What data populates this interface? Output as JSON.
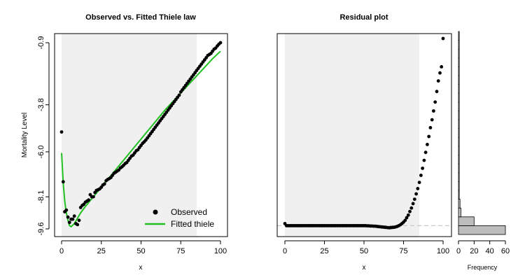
{
  "colors": {
    "points": "#000000",
    "fitted": "#22c022",
    "shade": "#f0f0f0",
    "hist_fill": "#bdbdbd",
    "zero_line": "#c8c8c8"
  },
  "chart_data": [
    {
      "type": "scatter",
      "title": "Observed vs. Fitted Thiele law",
      "xlabel": "x",
      "ylabel": "Mortality Level",
      "xlim": [
        0,
        100
      ],
      "ylim": [
        -9.6,
        -0.9
      ],
      "x_ticks": [
        0,
        25,
        50,
        75,
        100
      ],
      "x_tick_labels": [
        "0",
        "25",
        "50",
        "75",
        "100"
      ],
      "y_ticks": [
        -9.6,
        -8.1,
        -6.0,
        -3.8,
        -0.9
      ],
      "y_tick_labels": [
        "-9.6",
        "-8.1",
        "-6.0",
        "-3.8",
        "-0.9"
      ],
      "shaded_x_range": [
        0,
        85
      ],
      "legend": {
        "position": "bottom-right",
        "entries": [
          "Observed",
          "Fitted thiele"
        ]
      },
      "series": [
        {
          "name": "Observed",
          "style": "points",
          "x": [
            0,
            1,
            2,
            3,
            4,
            5,
            6,
            7,
            8,
            9,
            10,
            11,
            12,
            13,
            14,
            15,
            16,
            17,
            18,
            19,
            20,
            21,
            22,
            23,
            24,
            25,
            26,
            27,
            28,
            29,
            30,
            31,
            32,
            33,
            34,
            35,
            36,
            37,
            38,
            39,
            40,
            41,
            42,
            43,
            44,
            45,
            46,
            47,
            48,
            49,
            50,
            51,
            52,
            53,
            54,
            55,
            56,
            57,
            58,
            59,
            60,
            61,
            62,
            63,
            64,
            65,
            66,
            67,
            68,
            69,
            70,
            71,
            72,
            73,
            74,
            75,
            76,
            77,
            78,
            79,
            80,
            81,
            82,
            83,
            84,
            85,
            86,
            87,
            88,
            89,
            90,
            91,
            92,
            93,
            94,
            95,
            96,
            97,
            98,
            99,
            100
          ],
          "y": [
            -5.07,
            -7.4,
            -8.8,
            -8.72,
            -9.05,
            -9.3,
            -9.15,
            -9.15,
            -9.0,
            -9.35,
            -9.4,
            -9.2,
            -8.6,
            -8.5,
            -8.45,
            -8.35,
            -8.3,
            -8.25,
            -8.0,
            -8.1,
            -8.1,
            -7.9,
            -7.8,
            -7.77,
            -7.73,
            -7.65,
            -7.55,
            -7.5,
            -7.35,
            -7.29,
            -7.25,
            -7.2,
            -7.1,
            -7.0,
            -6.95,
            -6.9,
            -6.85,
            -6.75,
            -6.7,
            -6.63,
            -6.55,
            -6.5,
            -6.4,
            -6.3,
            -6.2,
            -6.15,
            -6.05,
            -5.95,
            -5.9,
            -5.8,
            -5.7,
            -5.6,
            -5.53,
            -5.45,
            -5.35,
            -5.25,
            -5.15,
            -5.05,
            -4.95,
            -4.85,
            -4.75,
            -4.65,
            -4.55,
            -4.45,
            -4.35,
            -4.25,
            -4.15,
            -4.05,
            -3.95,
            -3.85,
            -3.75,
            -3.65,
            -3.55,
            -3.45,
            -3.35,
            -3.2,
            -3.1,
            -3.0,
            -2.9,
            -2.8,
            -2.7,
            -2.6,
            -2.5,
            -2.4,
            -2.3,
            -2.2,
            -2.1,
            -2.0,
            -1.9,
            -1.8,
            -1.7,
            -1.6,
            -1.5,
            -1.45,
            -1.4,
            -1.3,
            -1.2,
            -1.15,
            -1.05,
            -0.97,
            -0.9
          ]
        },
        {
          "name": "Fitted thiele",
          "style": "line",
          "x": [
            0,
            1,
            2,
            3,
            4,
            5,
            6,
            8,
            10,
            12,
            15,
            20,
            25,
            30,
            35,
            40,
            45,
            50,
            55,
            60,
            65,
            70,
            75,
            80,
            85,
            90,
            95,
            100
          ],
          "y": [
            -6.05,
            -7.45,
            -8.3,
            -8.85,
            -9.2,
            -9.45,
            -9.5,
            -9.35,
            -9.1,
            -8.85,
            -8.55,
            -8.1,
            -7.65,
            -7.2,
            -6.75,
            -6.3,
            -5.85,
            -5.4,
            -4.95,
            -4.5,
            -4.05,
            -3.65,
            -3.25,
            -2.85,
            -2.45,
            -2.05,
            -1.65,
            -1.3
          ]
        }
      ]
    },
    {
      "type": "scatter",
      "title": "Residual plot",
      "xlabel": "x",
      "ylabel": "",
      "xlim": [
        0,
        100
      ],
      "ylim": [
        -0.5,
        10.8
      ],
      "x_ticks": [
        0,
        25,
        50,
        75,
        100
      ],
      "x_tick_labels": [
        "0",
        "25",
        "50",
        "75",
        "100"
      ],
      "shaded_x_range": [
        0,
        85
      ],
      "reference_line_y": 0,
      "series": [
        {
          "name": "",
          "style": "points",
          "x": [
            0,
            1,
            2,
            3,
            4,
            5,
            6,
            7,
            8,
            9,
            10,
            11,
            12,
            13,
            14,
            15,
            16,
            17,
            18,
            19,
            20,
            21,
            22,
            23,
            24,
            25,
            26,
            27,
            28,
            29,
            30,
            31,
            32,
            33,
            34,
            35,
            36,
            37,
            38,
            39,
            40,
            41,
            42,
            43,
            44,
            45,
            46,
            47,
            48,
            49,
            50,
            51,
            52,
            53,
            54,
            55,
            56,
            57,
            58,
            59,
            60,
            61,
            62,
            63,
            64,
            65,
            66,
            67,
            68,
            69,
            70,
            71,
            72,
            73,
            74,
            75,
            76,
            77,
            78,
            79,
            80,
            81,
            82,
            83,
            84,
            85,
            86,
            87,
            88,
            89,
            90,
            91,
            92,
            93,
            94,
            95,
            96,
            97,
            98,
            99,
            100
          ],
          "y": [
            0.12,
            0.0,
            0.0,
            0.0,
            0.0,
            0.0,
            0.0,
            0.0,
            0.0,
            0.0,
            0.0,
            0.0,
            0.0,
            0.0,
            0.0,
            0.0,
            0.0,
            0.0,
            0.0,
            0.0,
            0.0,
            0.0,
            0.0,
            0.0,
            0.0,
            0.0,
            0.0,
            0.0,
            0.0,
            0.0,
            0.0,
            0.0,
            0.0,
            0.0,
            0.0,
            0.0,
            0.0,
            0.0,
            0.0,
            0.0,
            0.0,
            0.0,
            0.0,
            0.0,
            0.0,
            0.0,
            0.0,
            0.0,
            0.0,
            0.0,
            0.0,
            0.0,
            -0.01,
            -0.01,
            -0.02,
            -0.02,
            -0.03,
            -0.03,
            -0.04,
            -0.05,
            -0.06,
            -0.07,
            -0.08,
            -0.09,
            -0.1,
            -0.11,
            -0.12,
            -0.11,
            -0.1,
            -0.09,
            -0.07,
            -0.04,
            0.0,
            0.05,
            0.12,
            0.2,
            0.3,
            0.45,
            0.6,
            0.8,
            1.0,
            1.25,
            1.5,
            1.8,
            2.1,
            2.45,
            2.85,
            3.25,
            3.7,
            4.15,
            4.6,
            5.05,
            5.55,
            6.0,
            6.5,
            7.0,
            7.6,
            8.2,
            8.65,
            9.0,
            10.6
          ]
        }
      ]
    },
    {
      "type": "bar",
      "orientation": "horizontal",
      "title": "",
      "xlabel": "Frequency",
      "ylabel": "",
      "xlim": [
        0,
        60
      ],
      "x_ticks": [
        0,
        20,
        40,
        60
      ],
      "x_tick_labels": [
        "0",
        "20",
        "40",
        "60"
      ],
      "bin_width": 0.5,
      "bins_start": [
        -0.5,
        0.0,
        0.5,
        1.0,
        1.5,
        2.0,
        2.5,
        3.0,
        3.5,
        4.0,
        4.5,
        5.0,
        5.5,
        6.0,
        6.5,
        7.0,
        7.5,
        8.0,
        8.5,
        9.0,
        9.5,
        10.0,
        10.5
      ],
      "values": [
        60,
        20,
        3,
        2,
        1,
        1,
        1,
        1,
        1,
        1,
        1,
        1,
        1,
        1,
        1,
        1,
        1,
        1,
        1,
        1,
        1,
        1,
        1
      ]
    }
  ]
}
